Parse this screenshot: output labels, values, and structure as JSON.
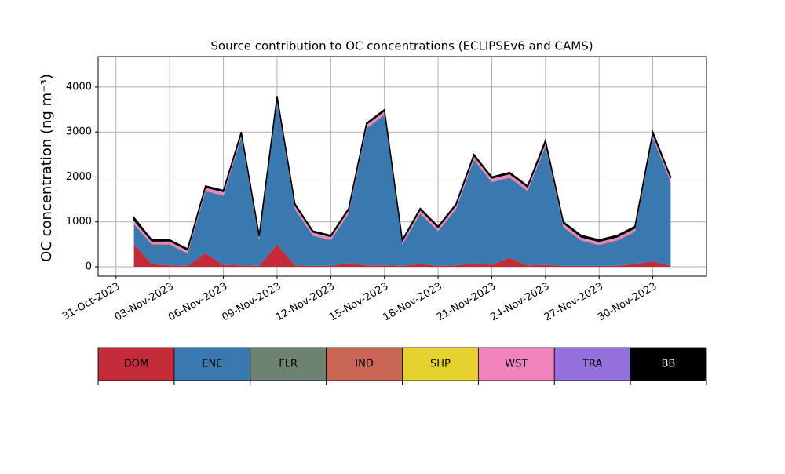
{
  "chart_data": {
    "type": "stacked-area",
    "title": "Source contribution to OC concentrations (ECLIPSEv6 and CAMS)",
    "y_label": "OC concentration (ng m⁻³)",
    "x": [
      "2023-11-01",
      "2023-11-02",
      "2023-11-03",
      "2023-11-04",
      "2023-11-05",
      "2023-11-06",
      "2023-11-07",
      "2023-11-08",
      "2023-11-09",
      "2023-11-10",
      "2023-11-11",
      "2023-11-12",
      "2023-11-13",
      "2023-11-14",
      "2023-11-15",
      "2023-11-16",
      "2023-11-17",
      "2023-11-18",
      "2023-11-19",
      "2023-11-20",
      "2023-11-21",
      "2023-11-22",
      "2023-11-23",
      "2023-11-24",
      "2023-11-25",
      "2023-11-26",
      "2023-11-27",
      "2023-11-28",
      "2023-11-29",
      "2023-11-30",
      "2023-12-01"
    ],
    "series": [
      {
        "name": "DOM",
        "color": "#c42b38",
        "values": [
          500,
          60,
          30,
          20,
          300,
          40,
          30,
          20,
          500,
          30,
          20,
          20,
          80,
          30,
          30,
          20,
          60,
          20,
          30,
          80,
          40,
          200,
          30,
          40,
          20,
          20,
          20,
          20,
          60,
          120,
          20
        ]
      },
      {
        "name": "ENE",
        "color": "#3a78b0",
        "values": [
          450,
          430,
          460,
          270,
          1380,
          1540,
          2850,
          570,
          3170,
          1250,
          670,
          570,
          1100,
          3050,
          3350,
          470,
          1120,
          770,
          1250,
          2300,
          1840,
          1780,
          1650,
          2640,
          860,
          560,
          460,
          560,
          720,
          2750,
          1860
        ]
      },
      {
        "name": "FLR",
        "color": "#6d8270",
        "values": [
          5,
          5,
          5,
          5,
          5,
          5,
          5,
          5,
          5,
          5,
          5,
          5,
          5,
          5,
          5,
          5,
          5,
          5,
          5,
          5,
          5,
          5,
          5,
          5,
          5,
          5,
          5,
          5,
          5,
          5,
          5
        ]
      },
      {
        "name": "IND",
        "color": "#c96655",
        "values": [
          10,
          10,
          10,
          10,
          10,
          10,
          10,
          10,
          10,
          10,
          10,
          10,
          10,
          10,
          10,
          10,
          10,
          10,
          10,
          10,
          10,
          10,
          10,
          10,
          10,
          10,
          10,
          10,
          10,
          10,
          10
        ]
      },
      {
        "name": "SHP",
        "color": "#e6d22e",
        "values": [
          0,
          0,
          0,
          0,
          0,
          0,
          0,
          0,
          0,
          0,
          0,
          0,
          0,
          0,
          0,
          0,
          0,
          0,
          0,
          0,
          0,
          0,
          0,
          0,
          0,
          0,
          0,
          0,
          0,
          0,
          0
        ]
      },
      {
        "name": "WST",
        "color": "#f082be",
        "values": [
          60,
          50,
          50,
          50,
          60,
          60,
          60,
          50,
          60,
          60,
          50,
          50,
          60,
          60,
          60,
          50,
          60,
          50,
          60,
          60,
          60,
          60,
          60,
          60,
          60,
          50,
          50,
          50,
          50,
          60,
          60
        ]
      },
      {
        "name": "TRA",
        "color": "#9370db",
        "values": [
          20,
          20,
          20,
          20,
          20,
          20,
          20,
          20,
          20,
          20,
          20,
          20,
          20,
          20,
          20,
          20,
          20,
          20,
          20,
          20,
          20,
          20,
          20,
          20,
          20,
          20,
          20,
          20,
          20,
          20,
          20
        ]
      },
      {
        "name": "BB",
        "color": "#000000",
        "values": [
          55,
          25,
          25,
          25,
          25,
          25,
          25,
          25,
          35,
          25,
          25,
          25,
          25,
          25,
          25,
          25,
          25,
          25,
          25,
          25,
          25,
          25,
          25,
          40,
          25,
          35,
          35,
          35,
          35,
          35,
          25
        ]
      }
    ],
    "xlim": [
      "2023-10-30",
      "2023-12-03"
    ],
    "xticks": [
      {
        "value": "2023-10-31",
        "label": "31-Oct-2023"
      },
      {
        "value": "2023-11-03",
        "label": "03-Nov-2023"
      },
      {
        "value": "2023-11-06",
        "label": "06-Nov-2023"
      },
      {
        "value": "2023-11-09",
        "label": "09-Nov-2023"
      },
      {
        "value": "2023-11-12",
        "label": "12-Nov-2023"
      },
      {
        "value": "2023-11-15",
        "label": "15-Nov-2023"
      },
      {
        "value": "2023-11-18",
        "label": "18-Nov-2023"
      },
      {
        "value": "2023-11-21",
        "label": "21-Nov-2023"
      },
      {
        "value": "2023-11-24",
        "label": "24-Nov-2023"
      },
      {
        "value": "2023-11-27",
        "label": "27-Nov-2023"
      },
      {
        "value": "2023-11-30",
        "label": "30-Nov-2023"
      }
    ],
    "ylim": [
      -210,
      4680
    ],
    "yticks": [
      0,
      1000,
      2000,
      3000,
      4000
    ],
    "grid": true
  }
}
